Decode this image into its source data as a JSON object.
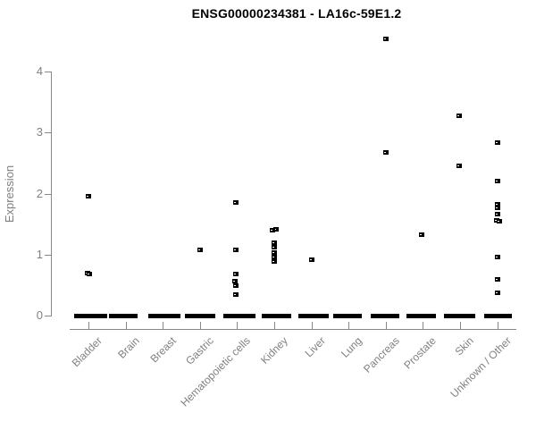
{
  "chart_data": {
    "type": "scatter",
    "title": "ENSG00000234381 - LA16c-59E1.2",
    "xlabel": "",
    "ylabel": "Expression",
    "ylim": [
      0,
      4.6
    ],
    "yticks": [
      0,
      1,
      2,
      3,
      4
    ],
    "grid": false,
    "legend": false,
    "marker": "small-black-square",
    "note": "Thick horizontal bars at y=0 are many overlapping samples with zero expression; points listed per category are the visible non-zero samples [value, x-jitter-px].",
    "categories": [
      "Bladder",
      "Brain",
      "Breast",
      "Gastric",
      "Hematopoietic cells",
      "Kidney",
      "Liver",
      "Lung",
      "Pancreas",
      "Prostate",
      "Skin",
      "Unknown / Other"
    ],
    "series": [
      {
        "name": "Bladder",
        "points": [
          [
            1.95,
            0
          ],
          [
            0.7,
            -1
          ],
          [
            0.68,
            1
          ]
        ],
        "zero_segments": [
          [
            -16,
            21
          ],
          [
            26,
            33
          ]
        ]
      },
      {
        "name": "Brain",
        "points": [],
        "zero_segments": [
          [
            -19,
            13
          ]
        ]
      },
      {
        "name": "Breast",
        "points": [],
        "zero_segments": [
          [
            -16,
            20
          ]
        ]
      },
      {
        "name": "Gastric",
        "points": [
          [
            1.07,
            0
          ]
        ],
        "zero_segments": [
          [
            -17,
            16
          ]
        ]
      },
      {
        "name": "Hematopoietic cells",
        "points": [
          [
            1.85,
            -1
          ],
          [
            1.07,
            -1
          ],
          [
            0.68,
            -1
          ],
          [
            0.56,
            -2
          ],
          [
            0.49,
            -1
          ],
          [
            0.34,
            -1
          ]
        ],
        "zero_segments": [
          [
            -30,
            -24
          ],
          [
            -15,
            17
          ]
        ]
      },
      {
        "name": "Kidney",
        "points": [
          [
            1.42,
            2
          ],
          [
            1.4,
            -2
          ],
          [
            1.2,
            0
          ],
          [
            1.12,
            0
          ],
          [
            1.04,
            0
          ],
          [
            0.96,
            0
          ],
          [
            0.88,
            0
          ]
        ],
        "zero_segments": [
          [
            -27,
            -21
          ],
          [
            -14,
            19
          ],
          [
            29,
            34
          ]
        ]
      },
      {
        "name": "Liver",
        "points": [
          [
            0.92,
            0
          ]
        ],
        "zero_segments": [
          [
            -15,
            19
          ]
        ]
      },
      {
        "name": "Lung",
        "points": [],
        "zero_segments": [
          [
            -17,
            15
          ]
        ]
      },
      {
        "name": "Pancreas",
        "points": [
          [
            4.54,
            0
          ],
          [
            2.68,
            0
          ]
        ],
        "zero_segments": [
          [
            -17,
            15
          ]
        ]
      },
      {
        "name": "Prostate",
        "points": [
          [
            1.32,
            -1
          ]
        ],
        "zero_segments": [
          [
            -18,
            15
          ]
        ]
      },
      {
        "name": "Skin",
        "points": [
          [
            3.28,
            -1
          ],
          [
            2.45,
            -1
          ]
        ],
        "zero_segments": [
          [
            -18,
            17
          ]
        ]
      },
      {
        "name": "Unknown / Other",
        "points": [
          [
            2.83,
            0
          ],
          [
            2.2,
            0
          ],
          [
            1.83,
            0
          ],
          [
            1.76,
            0
          ],
          [
            1.66,
            0
          ],
          [
            1.56,
            -1
          ],
          [
            1.54,
            2
          ],
          [
            0.96,
            0
          ],
          [
            0.6,
            0
          ],
          [
            0.38,
            0
          ]
        ],
        "zero_segments": [
          [
            -15,
            16
          ]
        ]
      }
    ],
    "colors": {
      "points": "#000000",
      "axis": "#888888",
      "tick_labels": "#808080",
      "title": "#000000",
      "background": "#ffffff"
    }
  }
}
